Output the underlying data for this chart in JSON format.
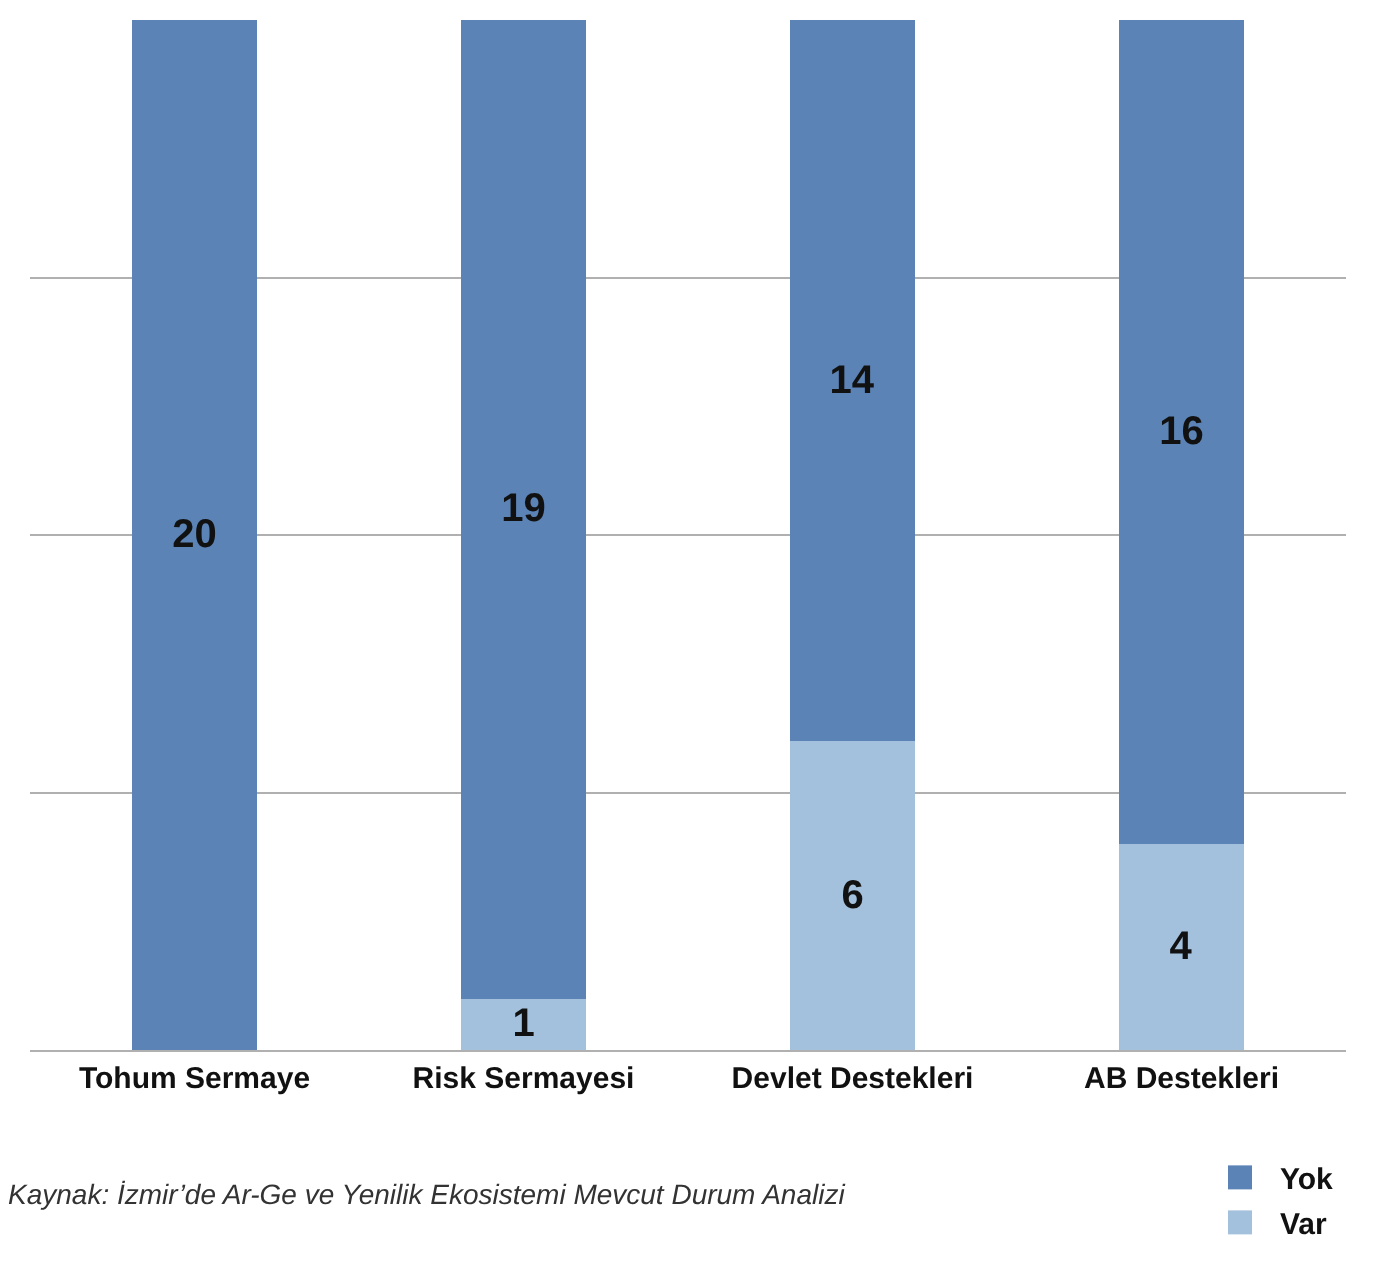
{
  "chart_data": {
    "type": "bar",
    "stacked": true,
    "categories": [
      "Tohum Sermaye",
      "Risk Sermayesi",
      "Devlet Destekleri",
      "AB Destekleri"
    ],
    "series": [
      {
        "name": "Var",
        "color": "#a3c1dd",
        "values": [
          null,
          1,
          6,
          4
        ]
      },
      {
        "name": "Yok",
        "color": "#5b83b5",
        "values": [
          20,
          19,
          14,
          16
        ]
      }
    ],
    "data_labels": true,
    "ylim": [
      0,
      20
    ],
    "yticks": [
      {
        "value": 5,
        "label": null
      },
      {
        "value": 10,
        "label": null
      },
      {
        "value": 15,
        "label": null
      }
    ],
    "grid": "y",
    "tick_labels": "x",
    "legend": "bottom right",
    "annotations": [
      "Kaynak: İzmir’de Ar-Ge ve Yenilik Ekosistemi Mevcut Durum Analizi"
    ]
  }
}
